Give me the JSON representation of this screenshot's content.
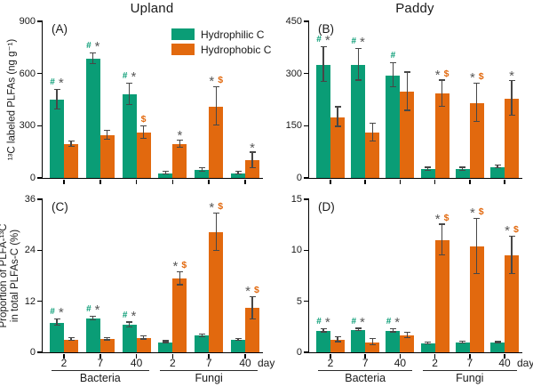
{
  "colors": {
    "hydrophilic_green": "#0a9d76",
    "hydrophobic_orange": "#e2690e",
    "annotation_hash": "#0a9d76",
    "annotation_star": "#595959",
    "annotation_dollar": "#e2690e",
    "axis": "#000000",
    "error_bar": "#474747"
  },
  "header": {
    "left_title": "Upland",
    "right_title": "Paddy"
  },
  "legend": {
    "items": [
      {
        "label": "Hydrophilic C",
        "color": "#0a9d76"
      },
      {
        "label": "Hydrophobic C",
        "color": "#e2690e"
      }
    ]
  },
  "x_axis": {
    "tick_labels": [
      "2",
      "7",
      "40",
      "2",
      "7",
      "40"
    ],
    "unit_label": "day",
    "group_labels": [
      "Bacteria",
      "Fungi"
    ]
  },
  "chart_data": [
    {
      "id": "A",
      "panel_label": "(A)",
      "type": "bar",
      "title": "Upland",
      "ylabel": "¹³C labeled PLFAs (ng g⁻¹)",
      "ylim": [
        0,
        900
      ],
      "yticks": [
        0,
        300,
        600,
        900
      ],
      "show_x_labels": false,
      "categories": [
        "Bacteria 2d",
        "Bacteria 7d",
        "Bacteria 40d",
        "Fungi 2d",
        "Fungi 7d",
        "Fungi 40d"
      ],
      "series": [
        {
          "name": "Hydrophilic C",
          "values": [
            450,
            685,
            480,
            28,
            45,
            28
          ],
          "errors": [
            55,
            30,
            60,
            6,
            10,
            6
          ],
          "annotations": [
            "# *",
            "# *",
            "# *",
            "",
            "",
            ""
          ]
        },
        {
          "name": "Hydrophobic C",
          "values": [
            195,
            245,
            260,
            195,
            410,
            100
          ],
          "errors": [
            15,
            25,
            35,
            20,
            110,
            45
          ],
          "annotations": [
            "",
            "",
            "$",
            "*",
            "* $",
            "*"
          ]
        }
      ]
    },
    {
      "id": "B",
      "panel_label": "(B)",
      "type": "bar",
      "title": "Paddy",
      "ylabel": "",
      "ylim": [
        0,
        450
      ],
      "yticks": [
        0,
        150,
        300,
        450
      ],
      "show_x_labels": false,
      "categories": [
        "Bacteria 2d",
        "Bacteria 7d",
        "Bacteria 40d",
        "Fungi 2d",
        "Fungi 7d",
        "Fungi 40d"
      ],
      "series": [
        {
          "name": "Hydrophilic C",
          "values": [
            325,
            325,
            295,
            25,
            25,
            32
          ],
          "errors": [
            50,
            45,
            35,
            4,
            4,
            4
          ],
          "annotations": [
            "# *",
            "# *",
            "#",
            "",
            "",
            ""
          ]
        },
        {
          "name": "Hydrophobic C",
          "values": [
            175,
            130,
            248,
            242,
            215,
            228
          ],
          "errors": [
            28,
            25,
            55,
            38,
            55,
            50
          ],
          "annotations": [
            "",
            "",
            "",
            "* $",
            "* $",
            "*"
          ]
        }
      ]
    },
    {
      "id": "C",
      "panel_label": "(C)",
      "type": "bar",
      "title": "Upland",
      "ylabel": "Proportion of PLFA-¹³C in total PLFAs-C (%)",
      "ylabel_line1": "Proportion of PLFA-¹³C",
      "ylabel_line2": "in total PLFAs-C (%)",
      "ylim": [
        0,
        36
      ],
      "yticks": [
        0,
        12,
        24,
        36
      ],
      "show_x_labels": true,
      "categories": [
        "Bacteria 2d",
        "Bacteria 7d",
        "Bacteria 40d",
        "Fungi 2d",
        "Fungi 7d",
        "Fungi 40d"
      ],
      "series": [
        {
          "name": "Hydrophilic C",
          "values": [
            7.0,
            8.0,
            6.4,
            2.4,
            3.9,
            2.9
          ],
          "errors": [
            0.8,
            0.4,
            0.6,
            0.2,
            0.3,
            0.2
          ],
          "annotations": [
            "# *",
            "# *",
            "# *",
            "",
            "",
            ""
          ]
        },
        {
          "name": "Hydrophobic C",
          "values": [
            3.0,
            3.1,
            3.4,
            17.3,
            28.2,
            10.4
          ],
          "errors": [
            0.3,
            0.3,
            0.4,
            1.5,
            4.4,
            2.6
          ],
          "annotations": [
            "",
            "",
            "",
            "* $",
            "* $",
            "* $"
          ]
        }
      ]
    },
    {
      "id": "D",
      "panel_label": "(D)",
      "type": "bar",
      "title": "Paddy",
      "ylabel": "",
      "ylim": [
        0,
        15
      ],
      "yticks": [
        0,
        5,
        10,
        15
      ],
      "show_x_labels": true,
      "categories": [
        "Bacteria 2d",
        "Bacteria 7d",
        "Bacteria 40d",
        "Fungi 2d",
        "Fungi 7d",
        "Fungi 40d"
      ],
      "series": [
        {
          "name": "Hydrophilic C",
          "values": [
            2.1,
            2.2,
            2.1,
            0.85,
            0.95,
            0.95
          ],
          "errors": [
            0.15,
            0.1,
            0.15,
            0.1,
            0.1,
            0.05
          ],
          "annotations": [
            "# *",
            "# *",
            "# *",
            "",
            "",
            ""
          ]
        },
        {
          "name": "Hydrophobic C",
          "values": [
            1.25,
            1.0,
            1.65,
            11.0,
            10.4,
            9.5
          ],
          "errors": [
            0.25,
            0.3,
            0.25,
            1.5,
            2.7,
            1.8
          ],
          "annotations": [
            "",
            "",
            "",
            "* $",
            "* $",
            "* $"
          ]
        }
      ]
    }
  ]
}
